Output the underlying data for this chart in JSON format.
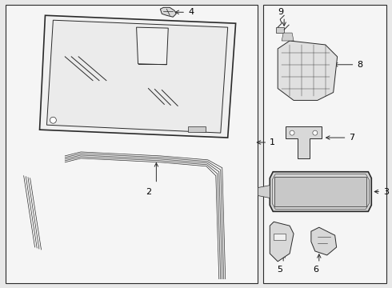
{
  "bg_color": "#e8e8e8",
  "panel_bg": "#f5f5f5",
  "line_color": "#2a2a2a",
  "label_color": "#000000",
  "lw_outer": 1.2,
  "lw_inner": 0.7,
  "lw_strip": 0.6
}
